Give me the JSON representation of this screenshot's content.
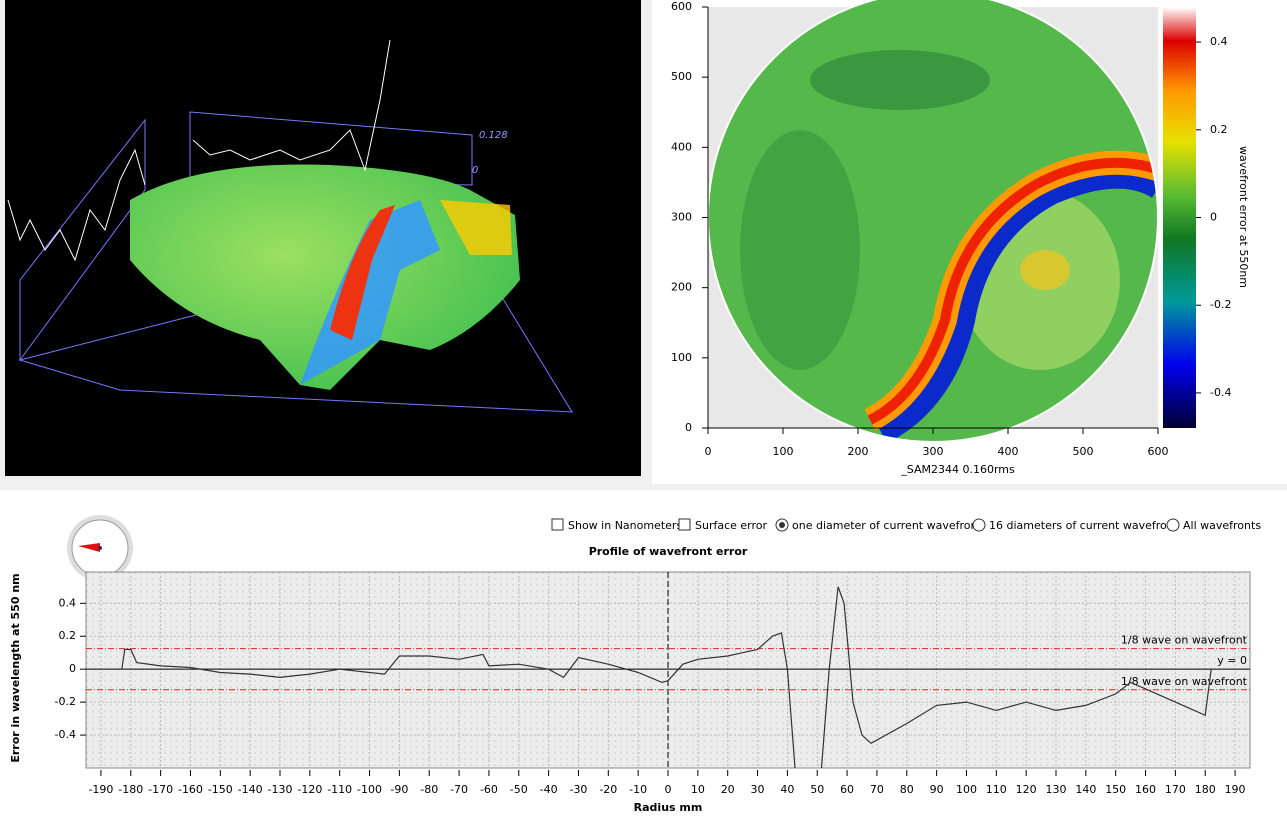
{
  "view3d": {
    "labels": [
      "0.128",
      "0"
    ]
  },
  "map": {
    "type": "heatmap",
    "xlim": [
      0,
      600
    ],
    "ylim": [
      0,
      600
    ],
    "xticks": [
      0,
      100,
      200,
      300,
      400,
      500,
      600
    ],
    "yticks": [
      0,
      100,
      200,
      300,
      400,
      500,
      600
    ],
    "caption": "_SAM2344 0.160rms",
    "colorbar": {
      "label": "wavefront error at 550nm",
      "lim": [
        -0.48,
        0.48
      ],
      "ticks": [
        0.4,
        0.2,
        0,
        -0.2,
        -0.4
      ]
    }
  },
  "options": [
    {
      "label": "Show in Nanometers",
      "kind": "checkbox",
      "checked": false
    },
    {
      "label": "Surface error",
      "kind": "checkbox",
      "checked": false
    },
    {
      "label": "one diameter of current wavefront",
      "kind": "radio",
      "checked": true
    },
    {
      "label": "16 diameters of current wavefront",
      "kind": "radio",
      "checked": false
    },
    {
      "label": "All wavefronts",
      "kind": "radio",
      "checked": false
    }
  ],
  "chart_data": {
    "type": "line",
    "title": "Profile of wavefront error",
    "xlabel": "Radius mm",
    "ylabel": "Error in wavelength at 550 nm",
    "xlim": [
      -195,
      195
    ],
    "ylim": [
      -0.6,
      0.59
    ],
    "xticks": [
      -190,
      -180,
      -170,
      -160,
      -150,
      -140,
      -130,
      -120,
      -110,
      -100,
      -90,
      -80,
      -70,
      -60,
      -50,
      -40,
      -30,
      -20,
      -10,
      0,
      10,
      20,
      30,
      40,
      50,
      60,
      70,
      80,
      90,
      100,
      110,
      120,
      130,
      140,
      150,
      160,
      170,
      180,
      190
    ],
    "yticks": [
      0.4,
      0.2,
      0,
      -0.2,
      -0.4
    ],
    "grid": true,
    "color": "#333333",
    "x": [
      -183,
      -182,
      -180,
      -178,
      -170,
      -160,
      -150,
      -140,
      -130,
      -120,
      -110,
      -100,
      -95,
      -90,
      -80,
      -70,
      -62,
      -60,
      -50,
      -40,
      -35,
      -30,
      -20,
      -10,
      -2,
      0,
      5,
      10,
      20,
      25,
      30,
      35,
      38,
      40,
      43,
      51,
      54,
      57,
      59,
      62,
      65,
      68,
      75,
      80,
      90,
      100,
      110,
      120,
      130,
      140,
      150,
      155,
      160,
      170,
      180,
      182
    ],
    "values": [
      0,
      0.12,
      0.12,
      0.04,
      0.02,
      0.01,
      -0.02,
      -0.03,
      -0.05,
      -0.03,
      0,
      -0.02,
      -0.03,
      0.08,
      0.08,
      0.06,
      0.09,
      0.02,
      0.03,
      0,
      -0.05,
      0.07,
      0.03,
      -0.02,
      -0.08,
      -0.07,
      0.03,
      0.06,
      0.08,
      0.1,
      0.12,
      0.2,
      0.22,
      0,
      -0.7,
      -0.7,
      0,
      0.5,
      0.4,
      -0.2,
      -0.4,
      -0.45,
      -0.38,
      -0.33,
      -0.22,
      -0.2,
      -0.25,
      -0.2,
      -0.25,
      -0.22,
      -0.15,
      -0.08,
      -0.12,
      -0.2,
      -0.28,
      0
    ],
    "hlines": [
      {
        "value": 0.125,
        "label": "1/8 wave on wavefront",
        "color": "#dd2222"
      },
      {
        "value": -0.125,
        "label": "1/8 wave on wavefront",
        "color": "#dd2222"
      },
      {
        "value": 0,
        "label": "y = 0",
        "color": "#000000"
      }
    ],
    "vline": 0
  }
}
